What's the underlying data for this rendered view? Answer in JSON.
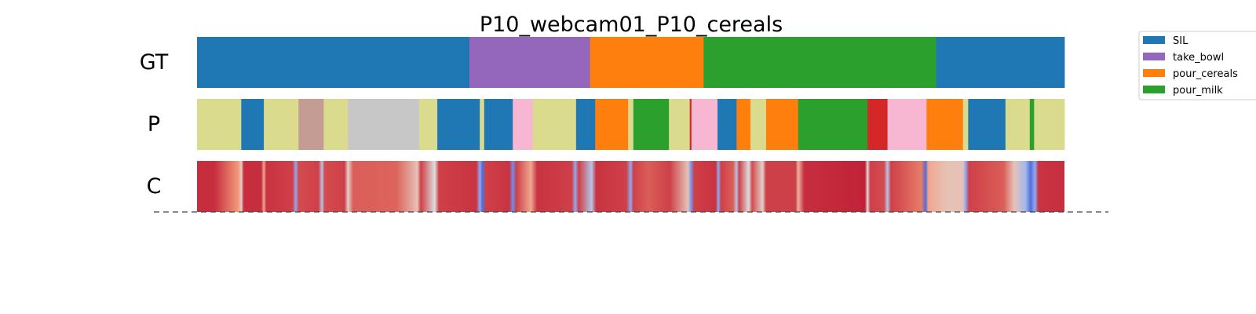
{
  "chart_data": {
    "type": "segmentation_timeline",
    "title": "P10_webcam01_P10_cereals",
    "x_range": [
      0,
      1000
    ],
    "rows": [
      {
        "label": "GT",
        "segments": [
          {
            "start": 0,
            "end": 314,
            "class": "SIL"
          },
          {
            "start": 314,
            "end": 453,
            "class": "take_bowl"
          },
          {
            "start": 453,
            "end": 584,
            "class": "pour_cereals"
          },
          {
            "start": 584,
            "end": 852,
            "class": "pour_milk"
          },
          {
            "start": 852,
            "end": 1000,
            "class": "SIL"
          }
        ]
      },
      {
        "label": "P",
        "segments": [
          {
            "start": 0,
            "end": 51,
            "class": "c_olive"
          },
          {
            "start": 51,
            "end": 77,
            "class": "SIL"
          },
          {
            "start": 77,
            "end": 117,
            "class": "c_olive"
          },
          {
            "start": 117,
            "end": 146,
            "class": "c_brown"
          },
          {
            "start": 146,
            "end": 174,
            "class": "c_olive"
          },
          {
            "start": 174,
            "end": 256,
            "class": "c_gray"
          },
          {
            "start": 256,
            "end": 277,
            "class": "c_olive"
          },
          {
            "start": 277,
            "end": 326,
            "class": "SIL"
          },
          {
            "start": 326,
            "end": 331,
            "class": "c_olive"
          },
          {
            "start": 331,
            "end": 364,
            "class": "SIL"
          },
          {
            "start": 364,
            "end": 387,
            "class": "c_pink"
          },
          {
            "start": 387,
            "end": 437,
            "class": "c_olive"
          },
          {
            "start": 437,
            "end": 459,
            "class": "SIL"
          },
          {
            "start": 459,
            "end": 497,
            "class": "pour_cereals"
          },
          {
            "start": 497,
            "end": 503,
            "class": "c_olive"
          },
          {
            "start": 503,
            "end": 544,
            "class": "pour_milk"
          },
          {
            "start": 544,
            "end": 568,
            "class": "c_olive"
          },
          {
            "start": 568,
            "end": 570,
            "class": "c_red"
          },
          {
            "start": 570,
            "end": 600,
            "class": "c_pink"
          },
          {
            "start": 600,
            "end": 622,
            "class": "SIL"
          },
          {
            "start": 622,
            "end": 638,
            "class": "pour_cereals"
          },
          {
            "start": 638,
            "end": 656,
            "class": "c_olive"
          },
          {
            "start": 656,
            "end": 693,
            "class": "pour_cereals"
          },
          {
            "start": 693,
            "end": 773,
            "class": "pour_milk"
          },
          {
            "start": 773,
            "end": 796,
            "class": "c_red"
          },
          {
            "start": 796,
            "end": 841,
            "class": "c_pink"
          },
          {
            "start": 841,
            "end": 883,
            "class": "pour_cereals"
          },
          {
            "start": 883,
            "end": 889,
            "class": "c_olive"
          },
          {
            "start": 889,
            "end": 932,
            "class": "SIL"
          },
          {
            "start": 932,
            "end": 960,
            "class": "c_olive"
          },
          {
            "start": 960,
            "end": 965,
            "class": "pour_milk"
          },
          {
            "start": 965,
            "end": 1000,
            "class": "c_olive"
          }
        ]
      }
    ],
    "confidence_row": {
      "label": "C",
      "colormap": "coolwarm",
      "values": [
        {
          "x": 0,
          "v": 0.93
        },
        {
          "x": 20,
          "v": 0.93
        },
        {
          "x": 48,
          "v": 0.75
        },
        {
          "x": 51,
          "v": 0.55
        },
        {
          "x": 54,
          "v": 0.93
        },
        {
          "x": 74,
          "v": 0.93
        },
        {
          "x": 77,
          "v": 0.7
        },
        {
          "x": 80,
          "v": 0.92
        },
        {
          "x": 110,
          "v": 0.9
        },
        {
          "x": 114,
          "v": 0.3
        },
        {
          "x": 117,
          "v": 0.88
        },
        {
          "x": 140,
          "v": 0.9
        },
        {
          "x": 144,
          "v": 0.4
        },
        {
          "x": 147,
          "v": 0.88
        },
        {
          "x": 170,
          "v": 0.9
        },
        {
          "x": 174,
          "v": 0.55
        },
        {
          "x": 180,
          "v": 0.85
        },
        {
          "x": 230,
          "v": 0.84
        },
        {
          "x": 254,
          "v": 0.6
        },
        {
          "x": 258,
          "v": 0.9
        },
        {
          "x": 274,
          "v": 0.5
        },
        {
          "x": 279,
          "v": 0.9
        },
        {
          "x": 322,
          "v": 0.92
        },
        {
          "x": 326,
          "v": 0.3
        },
        {
          "x": 329,
          "v": 0.1
        },
        {
          "x": 333,
          "v": 0.9
        },
        {
          "x": 360,
          "v": 0.92
        },
        {
          "x": 364,
          "v": 0.2
        },
        {
          "x": 368,
          "v": 0.9
        },
        {
          "x": 385,
          "v": 0.7
        },
        {
          "x": 392,
          "v": 0.92
        },
        {
          "x": 432,
          "v": 0.9
        },
        {
          "x": 436,
          "v": 0.3
        },
        {
          "x": 440,
          "v": 0.9
        },
        {
          "x": 455,
          "v": 0.4
        },
        {
          "x": 460,
          "v": 0.92
        },
        {
          "x": 495,
          "v": 0.9
        },
        {
          "x": 500,
          "v": 0.3
        },
        {
          "x": 503,
          "v": 0.9
        },
        {
          "x": 520,
          "v": 0.85
        },
        {
          "x": 545,
          "v": 0.9
        },
        {
          "x": 566,
          "v": 0.6
        },
        {
          "x": 570,
          "v": 0.2
        },
        {
          "x": 573,
          "v": 0.9
        },
        {
          "x": 598,
          "v": 0.92
        },
        {
          "x": 601,
          "v": 0.3
        },
        {
          "x": 604,
          "v": 0.9
        },
        {
          "x": 618,
          "v": 0.85
        },
        {
          "x": 622,
          "v": 0.4
        },
        {
          "x": 625,
          "v": 0.9
        },
        {
          "x": 636,
          "v": 0.5
        },
        {
          "x": 640,
          "v": 0.88
        },
        {
          "x": 652,
          "v": 0.55
        },
        {
          "x": 656,
          "v": 0.9
        },
        {
          "x": 690,
          "v": 0.9
        },
        {
          "x": 693,
          "v": 0.65
        },
        {
          "x": 700,
          "v": 0.93
        },
        {
          "x": 770,
          "v": 0.95
        },
        {
          "x": 773,
          "v": 0.5
        },
        {
          "x": 776,
          "v": 0.9
        },
        {
          "x": 792,
          "v": 0.88
        },
        {
          "x": 796,
          "v": 0.4
        },
        {
          "x": 800,
          "v": 0.9
        },
        {
          "x": 835,
          "v": 0.8
        },
        {
          "x": 840,
          "v": 0.1
        },
        {
          "x": 843,
          "v": 0.7
        },
        {
          "x": 865,
          "v": 0.6
        },
        {
          "x": 883,
          "v": 0.6
        },
        {
          "x": 886,
          "v": 0.3
        },
        {
          "x": 890,
          "v": 0.9
        },
        {
          "x": 930,
          "v": 0.85
        },
        {
          "x": 942,
          "v": 0.6
        },
        {
          "x": 955,
          "v": 0.35
        },
        {
          "x": 961,
          "v": 0.1
        },
        {
          "x": 966,
          "v": 0.3
        },
        {
          "x": 970,
          "v": 0.92
        },
        {
          "x": 1000,
          "v": 0.93
        }
      ]
    },
    "legend": {
      "placement": "upper-right-outside",
      "entries": [
        {
          "label": "SIL",
          "class": "SIL"
        },
        {
          "label": "take_bowl",
          "class": "take_bowl"
        },
        {
          "label": "pour_cereals",
          "class": "pour_cereals"
        },
        {
          "label": "pour_milk",
          "class": "pour_milk"
        }
      ]
    },
    "class_colors": {
      "SIL": "#1f77b4",
      "take_bowl": "#9467bd",
      "pour_cereals": "#ff7f0e",
      "pour_milk": "#2ca02c",
      "c_olive": "#dbdb8d",
      "c_brown": "#c49c94",
      "c_gray": "#c7c7c7",
      "c_pink": "#f7b6d2",
      "c_red": "#d62728"
    }
  }
}
